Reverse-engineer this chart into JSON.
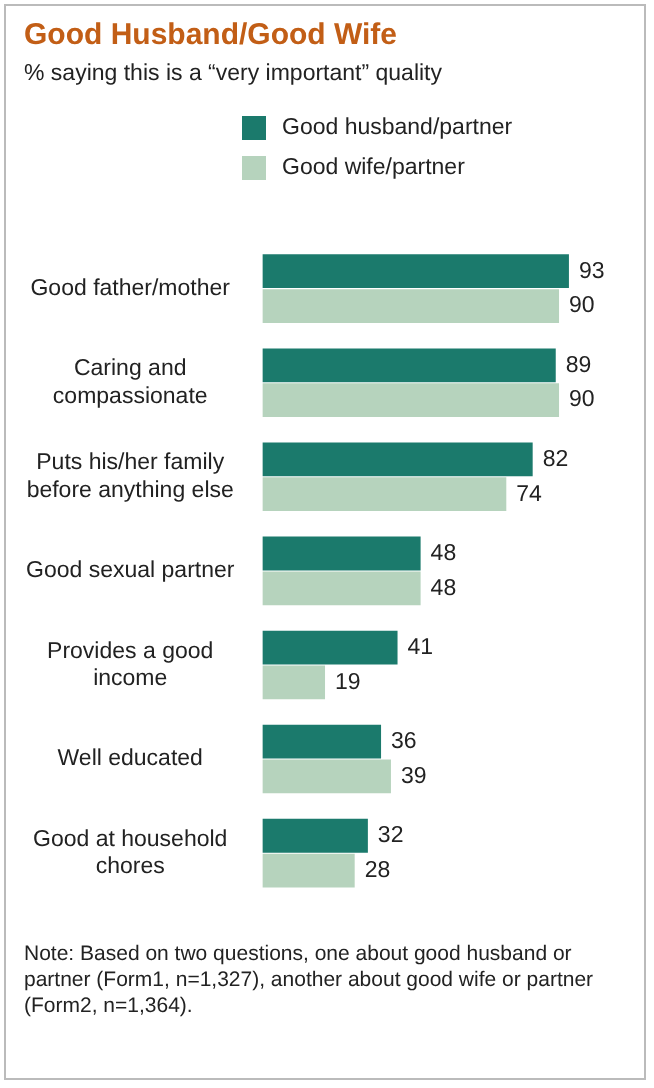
{
  "chart_data": {
    "type": "bar",
    "orientation": "horizontal",
    "title": "Good Husband/Good Wife",
    "subtitle": "% saying this is a “very important” quality",
    "categories": [
      "Good father/mother",
      "Caring and compassionate",
      "Puts his/her family before anything else",
      "Good sexual partner",
      "Provides a good income",
      "Well educated",
      "Good at household chores"
    ],
    "series": [
      {
        "name": "Good husband/partner",
        "color": "#1b7a6c",
        "values": [
          93,
          89,
          82,
          48,
          41,
          36,
          32
        ]
      },
      {
        "name": "Good wife/partner",
        "color": "#b6d3bd",
        "values": [
          90,
          90,
          74,
          48,
          19,
          39,
          28
        ]
      }
    ],
    "data_labels": true,
    "legend": "top left",
    "tick_labels": "y",
    "annotations": [
      "Note: Based on two questions, one about good husband or partner (Form1, n=1,327), another about good wife or partner (Form2, n=1,364)."
    ]
  }
}
